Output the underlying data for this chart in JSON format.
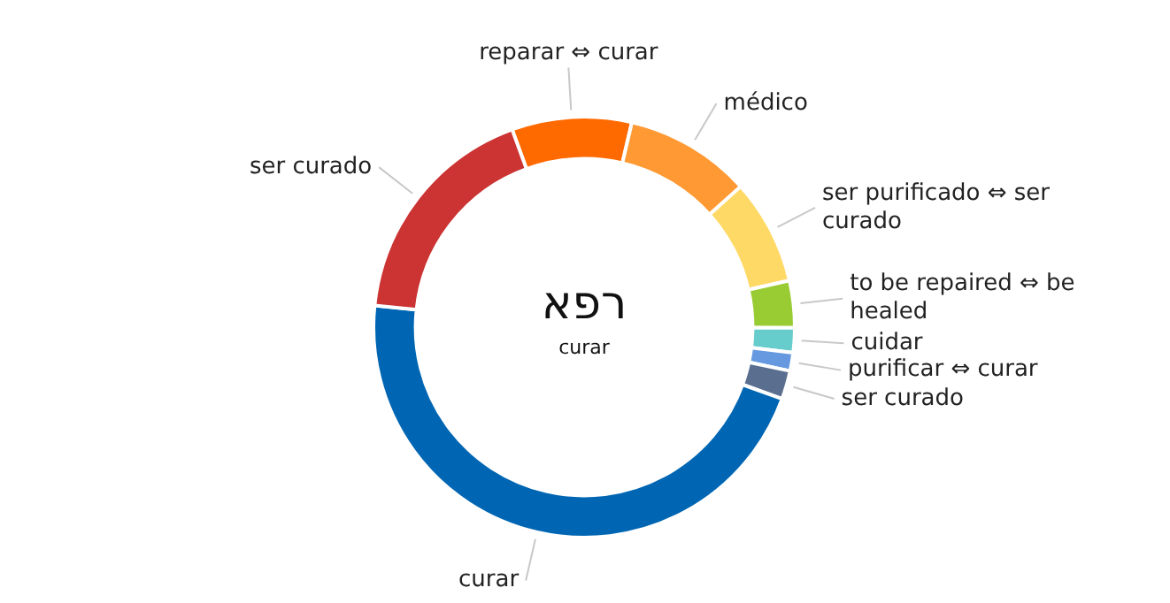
{
  "chart_data": {
    "type": "donut",
    "title": "רפא",
    "subtitle": "curar",
    "categories": [
      "reparar ⇔ curar",
      "médico",
      "ser purificado ⇔ ser curado",
      "to be repaired ⇔ be healed",
      "cuidar",
      "purificar ⇔ curar",
      "ser curado",
      "curar",
      "ser curado"
    ],
    "values": [
      9.2,
      9.7,
      8.1,
      3.6,
      1.9,
      1.4,
      2.2,
      46.1,
      17.8
    ],
    "colors": [
      "#ff6a00",
      "#ff9933",
      "#ffd966",
      "#99cc33",
      "#66cccc",
      "#6699e0",
      "#5a6f8f",
      "#0066b3",
      "#cc3333"
    ],
    "legend": false
  }
}
